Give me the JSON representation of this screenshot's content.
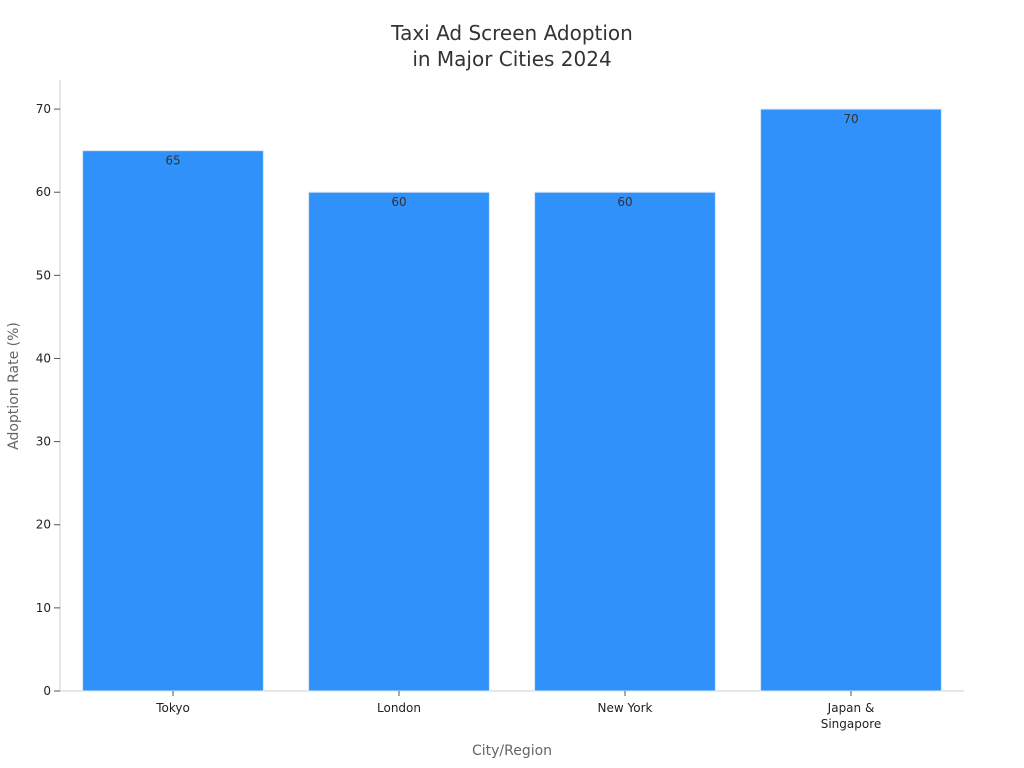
{
  "chart_data": {
    "type": "bar",
    "title_lines": [
      "Taxi Ad Screen Adoption",
      "in Major Cities 2024"
    ],
    "categories": [
      [
        "Tokyo"
      ],
      [
        "London"
      ],
      [
        "New York"
      ],
      [
        "Japan &",
        "Singapore"
      ]
    ],
    "values": [
      65,
      60,
      60,
      70
    ],
    "xlabel": "City/Region",
    "ylabel": "Adoption Rate (%)",
    "ylim": [
      0,
      73.5
    ],
    "yticks": [
      0,
      10,
      20,
      30,
      40,
      50,
      60,
      70
    ],
    "grid": false,
    "bar_color": "#2f91f9",
    "bar_edge_color": "#d8e6f5",
    "axis_color": "#cccccc"
  }
}
